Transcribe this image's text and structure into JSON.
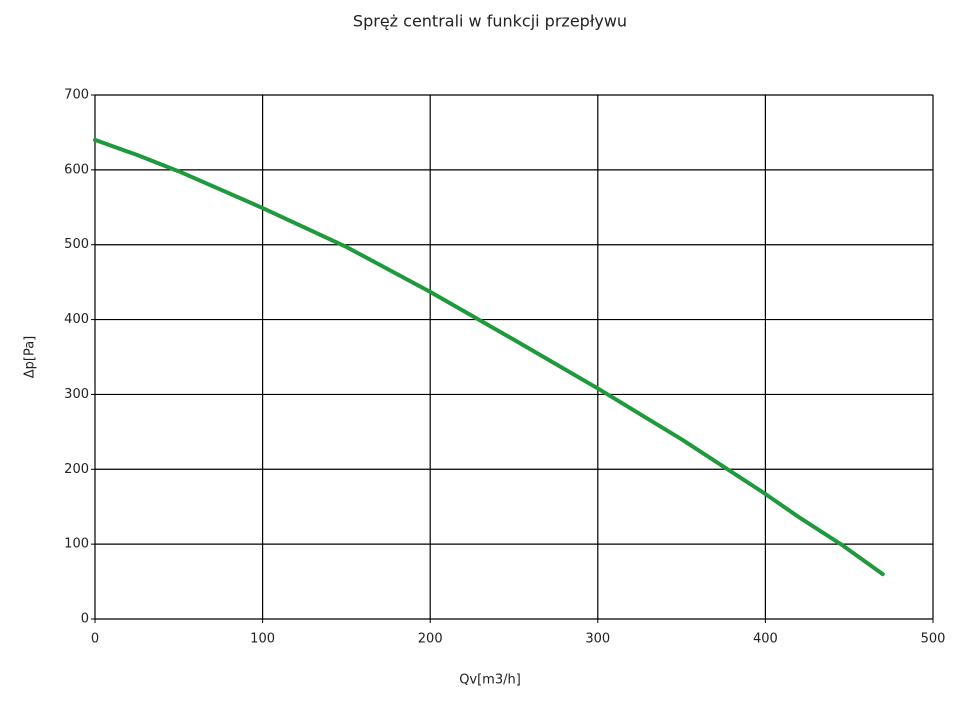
{
  "chart_data": {
    "type": "line",
    "title": "Spręż centrali w funkcji przepływu",
    "x_label": "Qv[m3/h]",
    "y_label": "Δp[Pa]",
    "x": [
      0,
      25,
      50,
      100,
      150,
      200,
      250,
      300,
      350,
      400,
      420,
      445,
      470
    ],
    "series": [
      {
        "name": "Δp",
        "color": "#1e9a3c",
        "values": [
          640,
          620,
          598,
          549,
          497,
          437,
          373,
          308,
          240,
          167,
          136,
          100,
          60
        ]
      }
    ],
    "xlim": [
      0,
      500
    ],
    "xticks": [
      0,
      100,
      200,
      300,
      400,
      500
    ],
    "ylim": [
      0,
      700
    ],
    "yticks": [
      0,
      100,
      200,
      300,
      400,
      500,
      600,
      700
    ],
    "grid": true
  }
}
